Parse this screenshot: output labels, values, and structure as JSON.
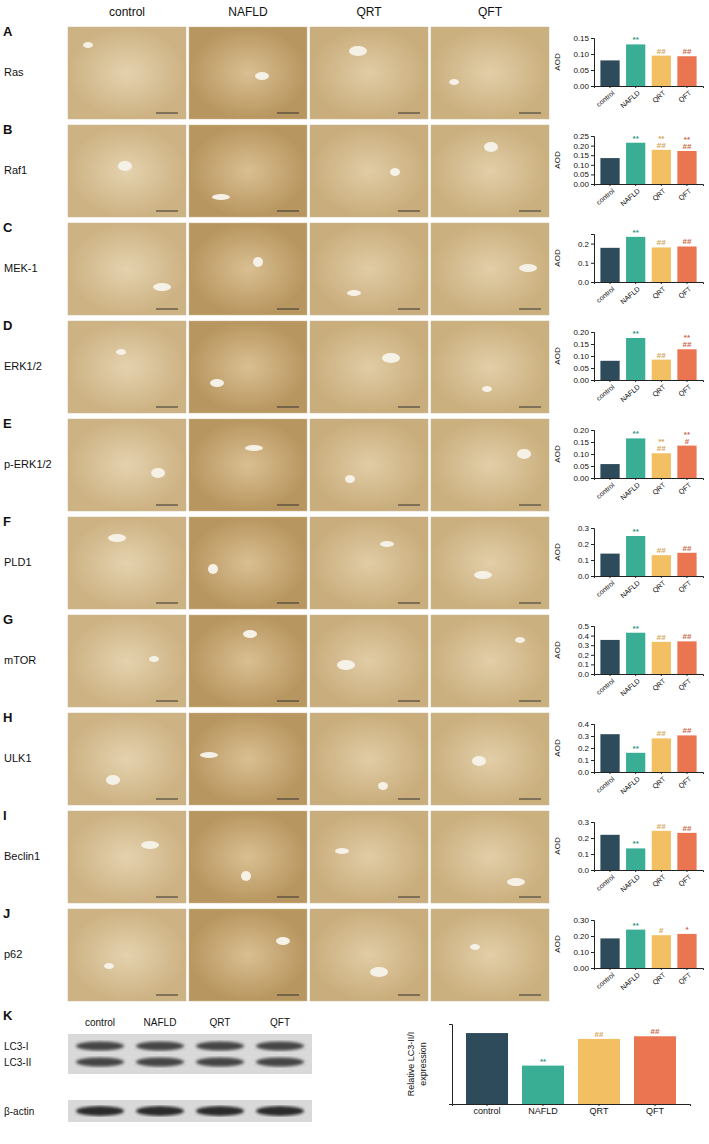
{
  "figure": {
    "columns": [
      "control",
      "NAFLD",
      "QRT",
      "QFT"
    ],
    "rows": [
      {
        "letter": "A",
        "label": "Ras"
      },
      {
        "letter": "B",
        "label": "Raf1"
      },
      {
        "letter": "C",
        "label": "MEK-1"
      },
      {
        "letter": "D",
        "label": "ERK1/2"
      },
      {
        "letter": "E",
        "label": "p-ERK1/2"
      },
      {
        "letter": "F",
        "label": "PLD1"
      },
      {
        "letter": "G",
        "label": "mTOR"
      },
      {
        "letter": "H",
        "label": "ULK1"
      },
      {
        "letter": "I",
        "label": "Beclin1"
      },
      {
        "letter": "J",
        "label": "p62"
      }
    ],
    "blot": {
      "letter": "K",
      "columns": [
        "control",
        "NAFLD",
        "QRT",
        "QFT"
      ],
      "bands": [
        "LC3-I",
        "LC3-II",
        "β-actin"
      ]
    }
  },
  "chart_data": [
    {
      "type": "bar",
      "ylabel": "AOD",
      "categories": [
        "control",
        "NAFLD",
        "QRT",
        "QFT"
      ],
      "values": [
        0.08,
        0.13,
        0.095,
        0.093
      ],
      "colors": [
        "#2d4b5a",
        "#3aae95",
        "#f2c062",
        "#ea7550"
      ],
      "ylim": [
        0,
        0.15
      ],
      "yticks": [
        {
          "value": 0,
          "label": "0.00"
        },
        0.05,
        {
          "value": 0.1,
          "label": "0.10"
        },
        0.15
      ],
      "grid": false,
      "annotations": [
        [],
        [
          "**"
        ],
        [
          "##"
        ],
        [
          "##"
        ]
      ]
    },
    {
      "type": "bar",
      "ylabel": "AOD",
      "categories": [
        "control",
        "NAFLD",
        "QRT",
        "QFT"
      ],
      "values": [
        0.135,
        0.215,
        0.178,
        0.172
      ],
      "colors": [
        "#2d4b5a",
        "#3aae95",
        "#f2c062",
        "#ea7550"
      ],
      "ylim": [
        0,
        0.25
      ],
      "yticks": [
        {
          "value": 0,
          "label": "0.00"
        },
        0.05,
        {
          "value": 0.1,
          "label": "0.10"
        },
        0.15,
        {
          "value": 0.2,
          "label": "0.20"
        },
        0.25
      ],
      "grid": false,
      "annotations": [
        [],
        [
          "**"
        ],
        [
          "**",
          "##"
        ],
        [
          "**",
          "##"
        ]
      ]
    },
    {
      "type": "bar",
      "ylabel": "AOD",
      "categories": [
        "control",
        "NAFLD",
        "QRT",
        "QFT"
      ],
      "values": [
        0.178,
        0.235,
        0.18,
        0.185
      ],
      "colors": [
        "#2d4b5a",
        "#3aae95",
        "#f2c062",
        "#ea7550"
      ],
      "ylim": [
        0,
        0.25
      ],
      "yticks": [
        {
          "value": 0,
          "label": "0.0"
        },
        0.1,
        0.2
      ],
      "grid": false,
      "annotations": [
        [],
        [
          "**"
        ],
        [
          "##"
        ],
        [
          "##"
        ]
      ]
    },
    {
      "type": "bar",
      "ylabel": "AOD",
      "categories": [
        "control",
        "NAFLD",
        "QRT",
        "QFT"
      ],
      "values": [
        0.08,
        0.175,
        0.085,
        0.128
      ],
      "colors": [
        "#2d4b5a",
        "#3aae95",
        "#f2c062",
        "#ea7550"
      ],
      "ylim": [
        0,
        0.2
      ],
      "yticks": [
        {
          "value": 0,
          "label": "0.00"
        },
        0.05,
        {
          "value": 0.1,
          "label": "0.10"
        },
        0.15,
        {
          "value": 0.2,
          "label": "0.20"
        }
      ],
      "grid": false,
      "annotations": [
        [],
        [
          "**"
        ],
        [
          "##"
        ],
        [
          "**",
          "##"
        ]
      ]
    },
    {
      "type": "bar",
      "ylabel": "AOD",
      "categories": [
        "control",
        "NAFLD",
        "QRT",
        "QFT"
      ],
      "values": [
        0.058,
        0.165,
        0.103,
        0.135
      ],
      "colors": [
        "#2d4b5a",
        "#3aae95",
        "#f2c062",
        "#ea7550"
      ],
      "ylim": [
        0,
        0.2
      ],
      "yticks": [
        {
          "value": 0,
          "label": "0.00"
        },
        0.05,
        {
          "value": 0.1,
          "label": "0.10"
        },
        0.15,
        {
          "value": 0.2,
          "label": "0.20"
        }
      ],
      "grid": false,
      "annotations": [
        [],
        [
          "**"
        ],
        [
          "**",
          "##"
        ],
        [
          "**",
          "#"
        ]
      ]
    },
    {
      "type": "bar",
      "ylabel": "AOD",
      "categories": [
        "control",
        "NAFLD",
        "QRT",
        "QFT"
      ],
      "values": [
        0.14,
        0.25,
        0.13,
        0.145
      ],
      "colors": [
        "#2d4b5a",
        "#3aae95",
        "#f2c062",
        "#ea7550"
      ],
      "ylim": [
        0,
        0.3
      ],
      "yticks": [
        {
          "value": 0,
          "label": "0.0"
        },
        0.1,
        0.2,
        0.3
      ],
      "grid": false,
      "annotations": [
        [],
        [
          "**"
        ],
        [
          "##"
        ],
        [
          "##"
        ]
      ]
    },
    {
      "type": "bar",
      "ylabel": "AOD",
      "categories": [
        "control",
        "NAFLD",
        "QRT",
        "QFT"
      ],
      "values": [
        0.355,
        0.43,
        0.335,
        0.34
      ],
      "colors": [
        "#2d4b5a",
        "#3aae95",
        "#f2c062",
        "#ea7550"
      ],
      "ylim": [
        0,
        0.5
      ],
      "yticks": [
        {
          "value": 0,
          "label": "0.0"
        },
        0.1,
        0.2,
        0.3,
        0.4,
        0.5
      ],
      "grid": false,
      "annotations": [
        [],
        [
          "**"
        ],
        [
          "##"
        ],
        [
          "##"
        ]
      ]
    },
    {
      "type": "bar",
      "ylabel": "AOD",
      "categories": [
        "control",
        "NAFLD",
        "QRT",
        "QFT"
      ],
      "values": [
        0.315,
        0.16,
        0.28,
        0.305
      ],
      "colors": [
        "#2d4b5a",
        "#3aae95",
        "#f2c062",
        "#ea7550"
      ],
      "ylim": [
        0,
        0.4
      ],
      "yticks": [
        {
          "value": 0,
          "label": "0.0"
        },
        0.1,
        0.2,
        0.3,
        0.4
      ],
      "grid": false,
      "annotations": [
        [],
        [
          "**"
        ],
        [
          "##"
        ],
        [
          "##"
        ]
      ]
    },
    {
      "type": "bar",
      "ylabel": "AOD",
      "categories": [
        "control",
        "NAFLD",
        "QRT",
        "QFT"
      ],
      "values": [
        0.22,
        0.135,
        0.245,
        0.232
      ],
      "colors": [
        "#2d4b5a",
        "#3aae95",
        "#f2c062",
        "#ea7550"
      ],
      "ylim": [
        0,
        0.3
      ],
      "yticks": [
        {
          "value": 0,
          "label": "0.0"
        },
        0.1,
        0.2,
        0.3
      ],
      "grid": false,
      "annotations": [
        [],
        [
          "**"
        ],
        [
          "##"
        ],
        [
          "##"
        ]
      ]
    },
    {
      "type": "bar",
      "ylabel": "AOD",
      "categories": [
        "control",
        "NAFLD",
        "QRT",
        "QFT"
      ],
      "values": [
        0.185,
        0.24,
        0.205,
        0.213
      ],
      "colors": [
        "#2d4b5a",
        "#3aae95",
        "#f2c062",
        "#ea7550"
      ],
      "ylim": [
        0,
        0.3
      ],
      "yticks": [
        {
          "value": 0,
          "label": "0.00"
        },
        {
          "value": 0.1,
          "label": "0.10"
        },
        {
          "value": 0.2,
          "label": "0.20"
        },
        {
          "value": 0.3,
          "label": "0.30"
        }
      ],
      "grid": false,
      "annotations": [
        [],
        [
          "**"
        ],
        [
          "#"
        ],
        [
          "*"
        ]
      ]
    },
    {
      "type": "bar",
      "ylabel": "Relative LC3-II/I expression",
      "categories": [
        "control",
        "NAFLD",
        "QRT",
        "QFT"
      ],
      "values": [
        1.33,
        0.72,
        1.22,
        1.27
      ],
      "colors": [
        "#2d4b5a",
        "#3aae95",
        "#f2c062",
        "#ea7550"
      ],
      "ylim": [
        0,
        1.5
      ],
      "tick_labels": "x",
      "grid": false,
      "annotations": [
        [],
        [
          "**"
        ],
        [
          "##"
        ],
        [
          "##"
        ]
      ]
    }
  ]
}
